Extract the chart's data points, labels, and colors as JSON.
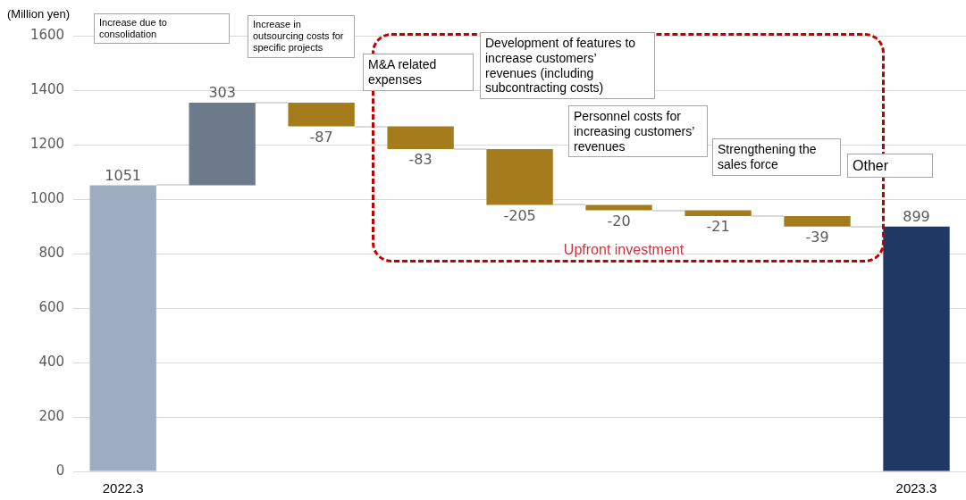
{
  "chart_data": {
    "type": "bar",
    "ylabel": "(Million yen)",
    "categories": [
      "2022.3",
      null,
      null,
      null,
      null,
      null,
      null,
      null,
      "2023.3"
    ],
    "values": [
      1051,
      303,
      -87,
      -83,
      -205,
      -20,
      -21,
      -39,
      899
    ],
    "base": [
      0,
      1051,
      1354,
      1267,
      1184,
      979,
      959,
      938,
      0
    ],
    "colors": [
      "#9eadc1",
      "#6c7a8c",
      "#a57c1b",
      "#a57c1b",
      "#a57c1b",
      "#a57c1b",
      "#a57c1b",
      "#a57c1b",
      "#1f3864"
    ],
    "ylim": [
      0,
      1600
    ],
    "yticks": [
      0,
      200,
      400,
      600,
      800,
      1000,
      1200,
      1400,
      1600
    ],
    "grid": "y",
    "legend": false,
    "data_labels": true,
    "annotations": [
      "Increase due to consolidation",
      "Increase in outsourcing costs for specific projects",
      "M&A related expenses",
      "Development of features to increase customers’ revenues (including subcontracting costs)",
      "Personnel costs for increasing customers’ revenues",
      "Strengthening the sales force",
      "Other",
      "Upfront investment"
    ]
  }
}
